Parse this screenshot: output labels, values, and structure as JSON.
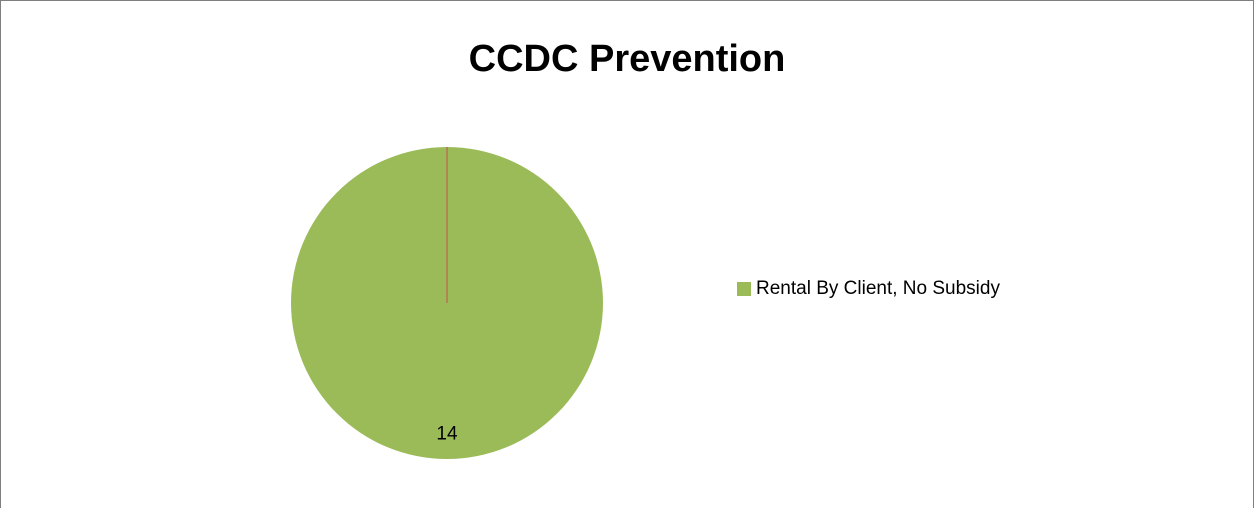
{
  "chart_data": {
    "type": "pie",
    "title": "CCDC Prevention",
    "categories": [
      "Rental By Client, No Subsidy"
    ],
    "values": [
      14
    ],
    "data_labels": [
      "14"
    ],
    "colors": [
      "#9BBB59"
    ],
    "legend_position": "right"
  },
  "colors": {
    "slice_edge": "#C0504D",
    "slice_fill": "#9BBB59"
  }
}
